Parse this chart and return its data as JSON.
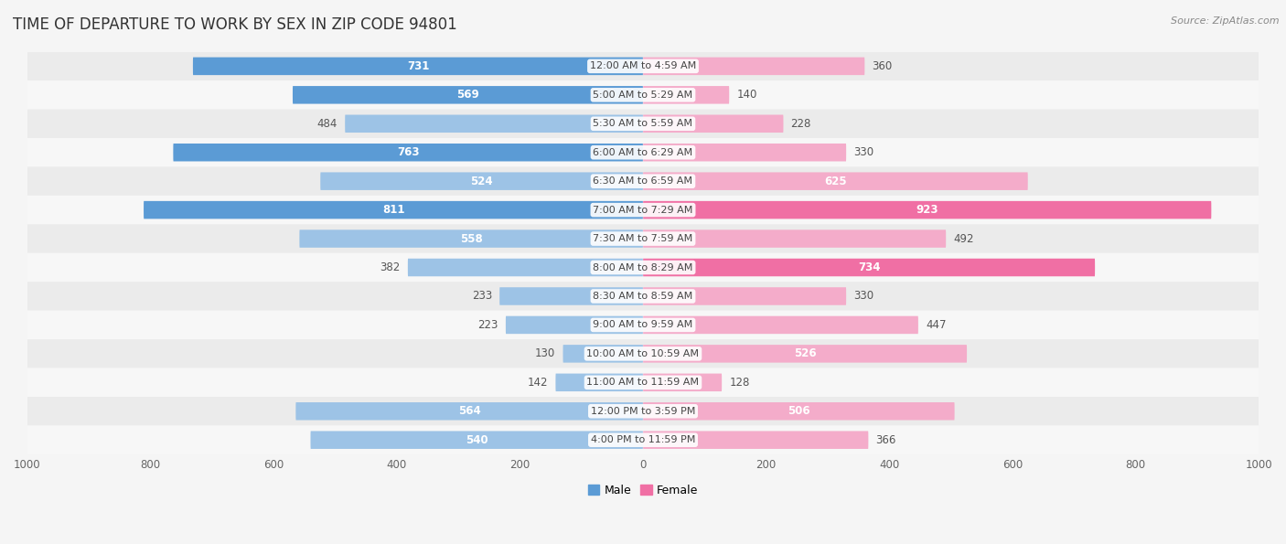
{
  "title": "Time of Departure to Work by Sex in Zip Code 94801",
  "source": "Source: ZipAtlas.com",
  "categories": [
    "12:00 AM to 4:59 AM",
    "5:00 AM to 5:29 AM",
    "5:30 AM to 5:59 AM",
    "6:00 AM to 6:29 AM",
    "6:30 AM to 6:59 AM",
    "7:00 AM to 7:29 AM",
    "7:30 AM to 7:59 AM",
    "8:00 AM to 8:29 AM",
    "8:30 AM to 8:59 AM",
    "9:00 AM to 9:59 AM",
    "10:00 AM to 10:59 AM",
    "11:00 AM to 11:59 AM",
    "12:00 PM to 3:59 PM",
    "4:00 PM to 11:59 PM"
  ],
  "male_values": [
    731,
    569,
    484,
    763,
    524,
    811,
    558,
    382,
    233,
    223,
    130,
    142,
    564,
    540
  ],
  "female_values": [
    360,
    140,
    228,
    330,
    625,
    923,
    492,
    734,
    330,
    447,
    526,
    128,
    506,
    366
  ],
  "male_color_dark": "#5b9bd5",
  "male_color_light": "#9dc3e6",
  "female_color_dark": "#f06fa4",
  "female_color_light": "#f4acca",
  "bar_height": 0.62,
  "xlim": 1000,
  "row_bg_odd": "#ebebeb",
  "row_bg_even": "#f7f7f7",
  "title_fontsize": 12,
  "label_fontsize": 8.5,
  "category_fontsize": 8,
  "axis_fontsize": 8.5,
  "source_fontsize": 8
}
